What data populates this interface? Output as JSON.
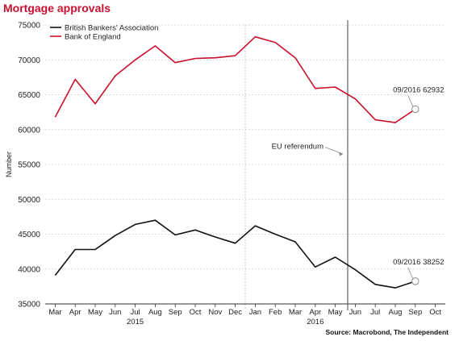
{
  "chart_data": {
    "type": "line",
    "title": "Mortgage approvals",
    "ylabel": "Number",
    "ylim": [
      35000,
      75000
    ],
    "yticks": [
      35000,
      40000,
      45000,
      50000,
      55000,
      60000,
      65000,
      70000,
      75000
    ],
    "x": [
      "Mar",
      "Apr",
      "May",
      "Jun",
      "Jul",
      "Aug",
      "Sep",
      "Oct",
      "Nov",
      "Dec",
      "Jan",
      "Feb",
      "Mar",
      "Apr",
      "May",
      "Jun",
      "Jul",
      "Aug",
      "Sep",
      "Oct"
    ],
    "year_labels": [
      {
        "label": "2015",
        "under": "Jul"
      },
      {
        "label": "2016",
        "under": "Apr"
      }
    ],
    "series": [
      {
        "name": "British Bankers' Association",
        "color": "#111111",
        "values": [
          39100,
          42800,
          42800,
          44800,
          46400,
          47000,
          44900,
          45600,
          44600,
          43700,
          46200,
          45000,
          43900,
          40300,
          41700,
          39900,
          37800,
          37300,
          38252,
          null
        ]
      },
      {
        "name": "Bank of England",
        "color": "#c8102e",
        "values": [
          61800,
          67200,
          63700,
          67700,
          70000,
          72000,
          69600,
          70200,
          70300,
          70600,
          73300,
          72500,
          70300,
          65900,
          66100,
          64400,
          61400,
          61000,
          62932,
          null
        ]
      }
    ],
    "annotations": [
      {
        "text": "09/2016 62932",
        "series": 1,
        "index": 18
      },
      {
        "text": "09/2016 38252",
        "series": 0,
        "index": 18
      },
      {
        "text": "EU referendum"
      }
    ],
    "grid": true,
    "legend": "top-left",
    "source": "Source: Macrobond, The Independent"
  }
}
